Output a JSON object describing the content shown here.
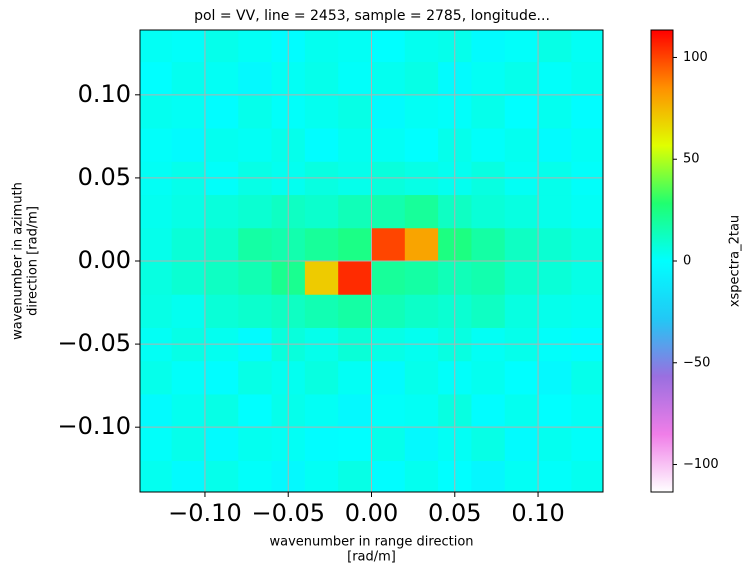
{
  "chart_data": {
    "type": "heatmap",
    "title": "pol = VV, line = 2453, sample = 2785, longitude...",
    "xlabel": [
      "wavenumber in range direction",
      "[rad/m]"
    ],
    "ylabel": [
      "wavenumber in azimuth",
      "direction [rad/m]"
    ],
    "x": [
      -0.13,
      -0.11,
      -0.09,
      -0.07,
      -0.05,
      -0.03,
      -0.01,
      0.01,
      0.03,
      0.05,
      0.07,
      0.09,
      0.11,
      0.13
    ],
    "y": [
      -0.13,
      -0.11,
      -0.09,
      -0.07,
      -0.05,
      -0.03,
      -0.01,
      0.01,
      0.03,
      0.05,
      0.07,
      0.09,
      0.11,
      0.13
    ],
    "z": [
      [
        3,
        -2,
        4,
        1,
        -3,
        2,
        5,
        -1,
        3,
        0,
        -4,
        2,
        1,
        3
      ],
      [
        1,
        4,
        -2,
        3,
        2,
        -1,
        0,
        4,
        -3,
        2,
        5,
        -2,
        3,
        1
      ],
      [
        -2,
        3,
        5,
        0,
        4,
        2,
        -3,
        1,
        2,
        6,
        -1,
        3,
        0,
        2
      ],
      [
        4,
        1,
        -1,
        5,
        3,
        6,
        2,
        -2,
        4,
        1,
        3,
        0,
        -3,
        4
      ],
      [
        2,
        5,
        3,
        -2,
        7,
        4,
        8,
        5,
        3,
        6,
        2,
        4,
        1,
        -1
      ],
      [
        5,
        3,
        8,
        10,
        12,
        15,
        18,
        14,
        11,
        9,
        12,
        6,
        4,
        3
      ],
      [
        6,
        9,
        12,
        15,
        22,
        70,
        105,
        20,
        18,
        14,
        16,
        10,
        8,
        5
      ],
      [
        4,
        8,
        10,
        18,
        16,
        20,
        24,
        100,
        80,
        25,
        18,
        12,
        9,
        6
      ],
      [
        3,
        5,
        7,
        9,
        12,
        10,
        14,
        16,
        20,
        12,
        8,
        6,
        4,
        2
      ],
      [
        2,
        4,
        1,
        5,
        3,
        6,
        4,
        7,
        5,
        3,
        6,
        2,
        4,
        1
      ],
      [
        1,
        -2,
        3,
        2,
        4,
        -1,
        3,
        2,
        0,
        4,
        1,
        3,
        -2,
        2
      ],
      [
        3,
        2,
        -1,
        4,
        1,
        3,
        5,
        -2,
        2,
        1,
        4,
        0,
        3,
        -1
      ],
      [
        0,
        3,
        2,
        -3,
        2,
        4,
        1,
        3,
        5,
        -2,
        2,
        4,
        1,
        3
      ],
      [
        2,
        1,
        4,
        2,
        -1,
        3,
        2,
        0,
        3,
        4,
        -2,
        1,
        5,
        2
      ]
    ],
    "xlim": [
      -0.139,
      0.139
    ],
    "ylim": [
      -0.139,
      0.139
    ],
    "xticks": [
      {
        "value": -0.1,
        "label": "−0.10"
      },
      {
        "value": -0.05,
        "label": "−0.05"
      },
      {
        "value": 0,
        "label": "0.00"
      },
      {
        "value": 0.05,
        "label": "0.05"
      },
      {
        "value": 0.1,
        "label": "0.10"
      }
    ],
    "yticks": [
      {
        "value": -0.1,
        "label": "−0.10"
      },
      {
        "value": -0.05,
        "label": "−0.05"
      },
      {
        "value": 0,
        "label": "0.00"
      },
      {
        "value": 0.05,
        "label": "0.05"
      },
      {
        "value": 0.1,
        "label": "0.10"
      }
    ],
    "grid": true,
    "colormap": [
      "#ffffff",
      "#f07ee8",
      "#9a6fe0",
      "#22c8f5",
      "#00ffff",
      "#20ff70",
      "#e0ff00",
      "#ff9000",
      "#ff0000"
    ],
    "colorbar": {
      "label": "xspectra_2tau",
      "lim": [
        -113.5,
        113.5
      ],
      "ticks": [
        {
          "value": -100,
          "label": "−100"
        },
        {
          "value": -50,
          "label": "−50"
        },
        0,
        50,
        100
      ]
    }
  }
}
